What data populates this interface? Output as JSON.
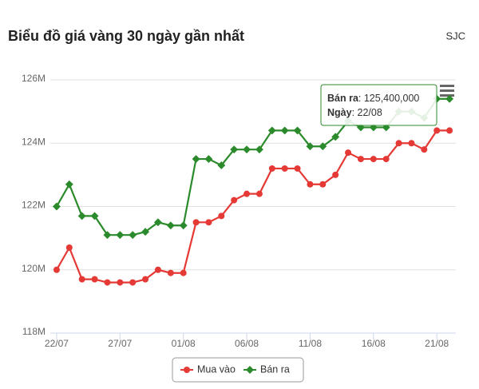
{
  "chart_data": {
    "type": "line",
    "title": "Biểu đồ giá vàng 30 ngày gần nhất",
    "source": "SJC",
    "categories": [
      "22/07",
      null,
      null,
      null,
      null,
      "27/07",
      null,
      null,
      null,
      null,
      "01/08",
      null,
      null,
      null,
      null,
      "06/08",
      null,
      null,
      null,
      null,
      "11/08",
      null,
      null,
      null,
      null,
      "16/08",
      null,
      null,
      null,
      null,
      "21/08",
      null
    ],
    "series": [
      {
        "name": "Mua vào",
        "color": "#e53935",
        "values": [
          120.0,
          120.7,
          119.7,
          119.7,
          119.6,
          119.6,
          119.6,
          119.7,
          120.0,
          119.9,
          119.9,
          121.5,
          121.5,
          121.7,
          122.2,
          122.4,
          122.4,
          123.2,
          123.2,
          123.2,
          122.7,
          122.7,
          123.0,
          123.7,
          123.5,
          123.5,
          123.5,
          124.0,
          124.0,
          123.8,
          124.4,
          124.4
        ]
      },
      {
        "name": "Bán ra",
        "color": "#2b8a2b",
        "values": [
          122.0,
          122.7,
          121.7,
          121.7,
          121.1,
          121.1,
          121.1,
          121.2,
          121.5,
          121.4,
          121.4,
          123.5,
          123.5,
          123.3,
          123.8,
          123.8,
          123.8,
          124.4,
          124.4,
          124.4,
          123.9,
          123.9,
          124.2,
          124.7,
          124.5,
          124.5,
          124.5,
          125.0,
          125.0,
          124.8,
          125.4,
          125.4
        ]
      }
    ],
    "ylim": [
      118,
      126
    ],
    "yticks": [
      {
        "value": 118,
        "label": "118M"
      },
      {
        "value": 120,
        "label": "120M"
      },
      {
        "value": 122,
        "label": "122M"
      },
      {
        "value": 124,
        "label": "124M"
      },
      {
        "value": 126,
        "label": "126M"
      }
    ],
    "grid": true,
    "legend": "bottom",
    "tooltip": {
      "label1": "Bán ra",
      "value1": ": 125,400,000",
      "label2": "Ngày",
      "value2": ": 22/08"
    }
  }
}
